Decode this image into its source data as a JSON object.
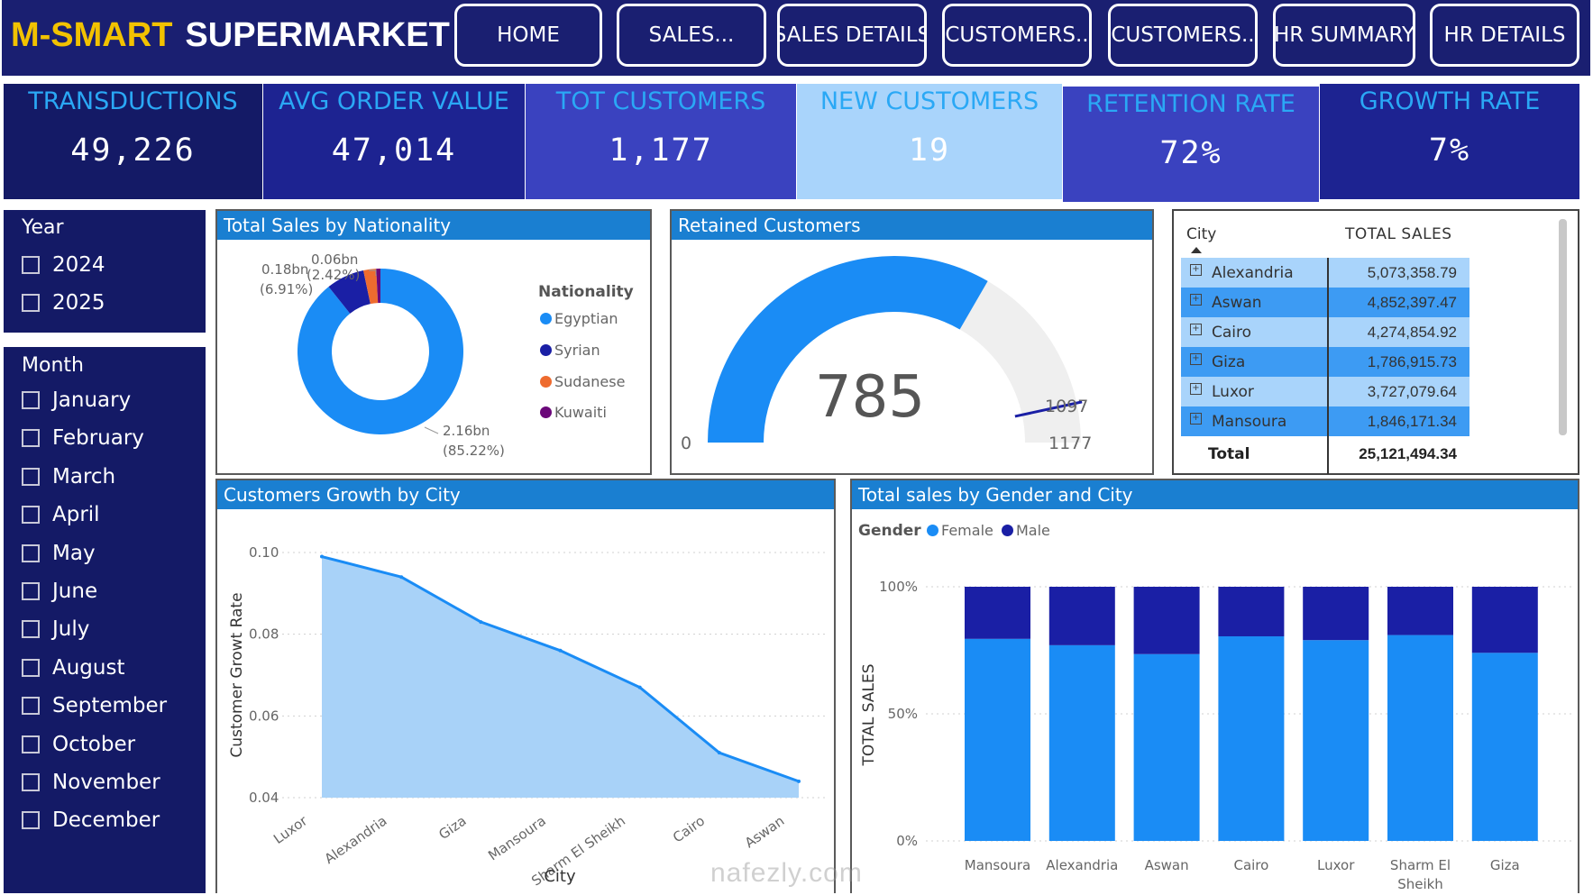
{
  "header": {
    "brand_part1": "M-SMART",
    "brand_part2": "SUPERMARKET",
    "nav": [
      "HOME",
      "SALES...",
      "SALES DETAILS",
      "CUSTOMERS..",
      "CUSTOMERS..",
      "HR SUMMARY",
      "HR DETAILS"
    ]
  },
  "kpis": [
    {
      "label": "TRANSDUCTIONS",
      "value": "49,226"
    },
    {
      "label": "AVG ORDER VALUE",
      "value": "47,014"
    },
    {
      "label": "TOT CUSTOMERS",
      "value": "1,177"
    },
    {
      "label": "NEW CUSTOMERS",
      "value": "19"
    },
    {
      "label": "RETENTION RATE",
      "value": "72%"
    },
    {
      "label": "GROWTH RATE",
      "value": "7%"
    }
  ],
  "colors": {
    "navy": "#141a66",
    "blue": "#1a8cf5",
    "dark_blue": "#1a1fa5",
    "orange": "#ee6b2f",
    "purple": "#6b087a",
    "light_blue": "#9fd0fa"
  },
  "slicers": {
    "year": {
      "title": "Year",
      "options": [
        "2024",
        "2025"
      ]
    },
    "month": {
      "title": "Month",
      "options": [
        "January",
        "February",
        "March",
        "April",
        "May",
        "June",
        "July",
        "August",
        "September",
        "October",
        "November",
        "December"
      ]
    }
  },
  "nationality_chart": {
    "title": "Total Sales by Nationality",
    "legend_title": "Nationality",
    "label_large": "2.16bn",
    "label_large_pct": "(85.22%)",
    "label_mid": "0.18bn",
    "label_mid_pct": "(6.91%)",
    "label_small": "0.06bn",
    "label_small_pct": "(2.42%)"
  },
  "gauge": {
    "title": "Retained Customers",
    "value": 785,
    "value_text": "785",
    "min": 0,
    "min_text": "0",
    "max": 1177,
    "max_text": "1177",
    "target": 1097,
    "target_text": "1097"
  },
  "city_table": {
    "col_city": "City",
    "col_sales": "TOTAL SALES",
    "rows": [
      {
        "city": "Alexandria",
        "sales": "5,073,358.79"
      },
      {
        "city": "Aswan",
        "sales": "4,852,397.47"
      },
      {
        "city": "Cairo",
        "sales": "4,274,854.92"
      },
      {
        "city": "Giza",
        "sales": "1,786,915.73"
      },
      {
        "city": "Luxor",
        "sales": "3,727,079.64"
      },
      {
        "city": "Mansoura",
        "sales": "1,846,171.34"
      }
    ],
    "total_label": "Total",
    "total_value": "25,121,494.34"
  },
  "growth_chart": {
    "title": "Customers Growth by City",
    "xlabel": "City",
    "ylabel": "Customer Growt Rate"
  },
  "gender_chart": {
    "title": "Total sales by Gender and City",
    "legend_title": "Gender",
    "xlabel": "City",
    "ylabel": "TOTAL SALES"
  },
  "watermark": {
    "text": "nafezly.com"
  },
  "chart_data": [
    {
      "type": "pie",
      "title": "Total Sales by Nationality",
      "categories": [
        "Egyptian",
        "Syrian",
        "Sudanese",
        "Kuwaiti"
      ],
      "values": [
        2.16,
        0.18,
        0.06,
        0.02
      ],
      "unit": "bn",
      "series_colors": [
        "#1a8cf5",
        "#1a1fa5",
        "#ee6b2f",
        "#6b087a"
      ]
    },
    {
      "type": "area",
      "title": "Customers Growth by City",
      "xlabel": "City",
      "ylabel": "Customer Growt Rate",
      "categories": [
        "Luxor",
        "Alexandria",
        "Giza",
        "Mansoura",
        "Sharm El Sheikh",
        "Cairo",
        "Aswan"
      ],
      "values": [
        0.099,
        0.094,
        0.083,
        0.076,
        0.067,
        0.051,
        0.044
      ],
      "ylim": [
        0.04,
        0.1
      ],
      "yticks": [
        "0.10",
        "0.08",
        "0.06",
        "0.04"
      ],
      "ytick_values": [
        0.1,
        0.08,
        0.06,
        0.04
      ]
    },
    {
      "type": "bar",
      "stacked": "percent",
      "title": "Total sales by Gender and City",
      "xlabel": "City",
      "ylabel": "TOTAL SALES",
      "categories": [
        "Mansoura",
        "Alexandria",
        "Aswan",
        "Cairo",
        "Luxor",
        "Sharm El Sheikh",
        "Giza"
      ],
      "series": [
        {
          "name": "Female",
          "values": [
            0.795,
            0.77,
            0.735,
            0.805,
            0.79,
            0.81,
            0.74
          ]
        },
        {
          "name": "Male",
          "values": [
            0.205,
            0.23,
            0.265,
            0.195,
            0.21,
            0.19,
            0.26
          ]
        }
      ],
      "ylim": [
        0,
        1
      ],
      "yticks": [
        "100%",
        "50%",
        "0%"
      ],
      "ytick_values": [
        1,
        0.5,
        0
      ]
    }
  ]
}
